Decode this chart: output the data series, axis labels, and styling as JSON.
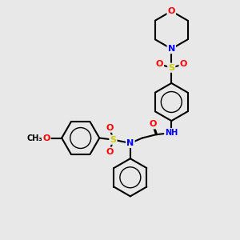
{
  "background_color": "#e8e8e8",
  "bond_color": "#000000",
  "atom_colors": {
    "O": "#ff0000",
    "N": "#0000ff",
    "S": "#cccc00",
    "H": "#7fbfbf",
    "C": "#000000"
  },
  "figure_size": [
    3.0,
    3.0
  ],
  "dpi": 100
}
